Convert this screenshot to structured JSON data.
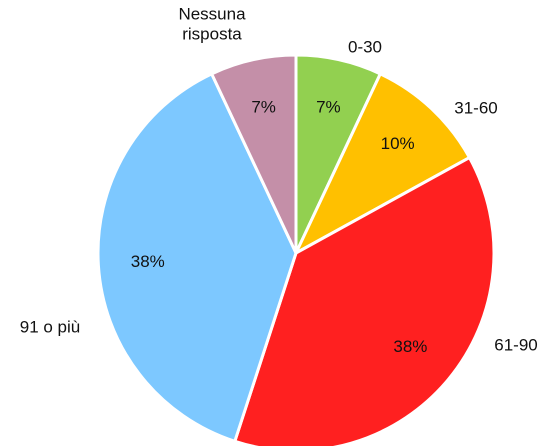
{
  "chart_data": {
    "type": "pie",
    "title": "",
    "start_angle_deg": 0,
    "direction": "clockwise",
    "slices": [
      {
        "label": "0-30",
        "label_lines": [
          "0-30"
        ],
        "value": 7,
        "pct_label": "7%",
        "color": "#92D050"
      },
      {
        "label": "31-60",
        "label_lines": [
          "31-60"
        ],
        "value": 10,
        "pct_label": "10%",
        "color": "#FFC000"
      },
      {
        "label": "61-90",
        "label_lines": [
          "61-90"
        ],
        "value": 38,
        "pct_label": "38%",
        "color": "#FF2020"
      },
      {
        "label": "91 o più",
        "label_lines": [
          "91 o più"
        ],
        "value": 38,
        "pct_label": "38%",
        "color": "#7DC8FF"
      },
      {
        "label": "Nessuna risposta",
        "label_lines": [
          "Nessuna",
          "risposta"
        ],
        "value": 7,
        "pct_label": "7%",
        "color": "#C48FA8"
      }
    ]
  }
}
